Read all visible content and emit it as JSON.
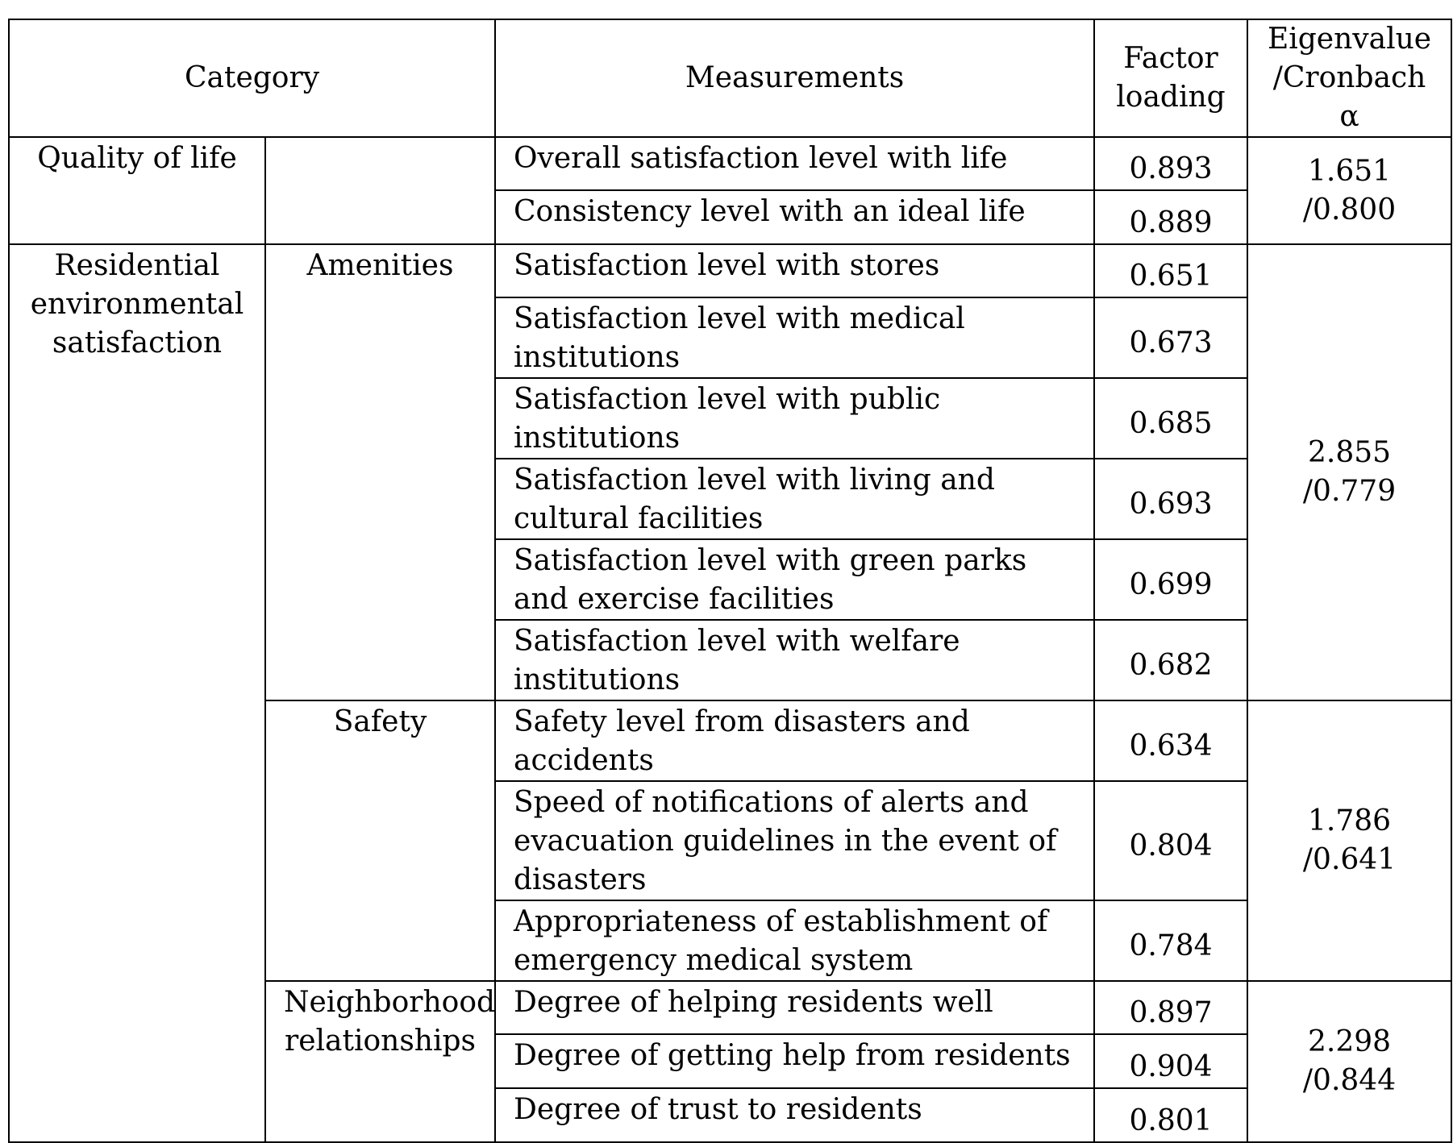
{
  "headers": {
    "category": "Category",
    "measurements": "Measurements",
    "factor_loading_line1": "Factor",
    "factor_loading_line2": "loading",
    "eigen_line1": "Eigenvalue",
    "eigen_line2": "/Cronbach α"
  },
  "groups": {
    "quality_of_life": {
      "category": "Quality of life",
      "subcategory": "",
      "eigen_value": "1.651",
      "cronbach": "/0.800",
      "rows": [
        {
          "measurement": "Overall satisfaction level with life",
          "loading": "0.893"
        },
        {
          "measurement": "Consistency level with an ideal life",
          "loading": "0.889"
        }
      ]
    },
    "residential": {
      "category": "Residential environmental satisfaction",
      "amenities": {
        "subcategory": "Amenities",
        "eigen_value": "2.855",
        "cronbach": "/0.779",
        "rows": [
          {
            "measurement": "Satisfaction level with stores",
            "loading": "0.651"
          },
          {
            "measurement": "Satisfaction level with medical institutions",
            "loading": "0.673"
          },
          {
            "measurement": "Satisfaction level with public institutions",
            "loading": "0.685"
          },
          {
            "measurement": "Satisfaction level with living and cultural facilities",
            "loading": "0.693"
          },
          {
            "measurement": "Satisfaction level with green parks and exercise facilities",
            "loading": "0.699"
          },
          {
            "measurement": "Satisfaction level with welfare institutions",
            "loading": "0.682"
          }
        ]
      },
      "safety": {
        "subcategory": "Safety",
        "eigen_value": "1.786",
        "cronbach": "/0.641",
        "rows": [
          {
            "measurement": "Safety level from disasters and accidents",
            "loading": "0.634"
          },
          {
            "measurement": "Speed of notifications of alerts and evacuation guidelines in the event of disasters",
            "loading": "0.804"
          },
          {
            "measurement": "Appropriateness of establishment of emergency medical system",
            "loading": "0.784"
          }
        ]
      },
      "neighborhood": {
        "subcategory": "Neighborhood relationships",
        "eigen_value": "2.298",
        "cronbach": "/0.844",
        "rows": [
          {
            "measurement": "Degree of helping residents well",
            "loading": "0.897"
          },
          {
            "measurement": "Degree of getting help from residents",
            "loading": "0.904"
          },
          {
            "measurement": "Degree of trust to residents",
            "loading": "0.801"
          }
        ]
      }
    }
  }
}
